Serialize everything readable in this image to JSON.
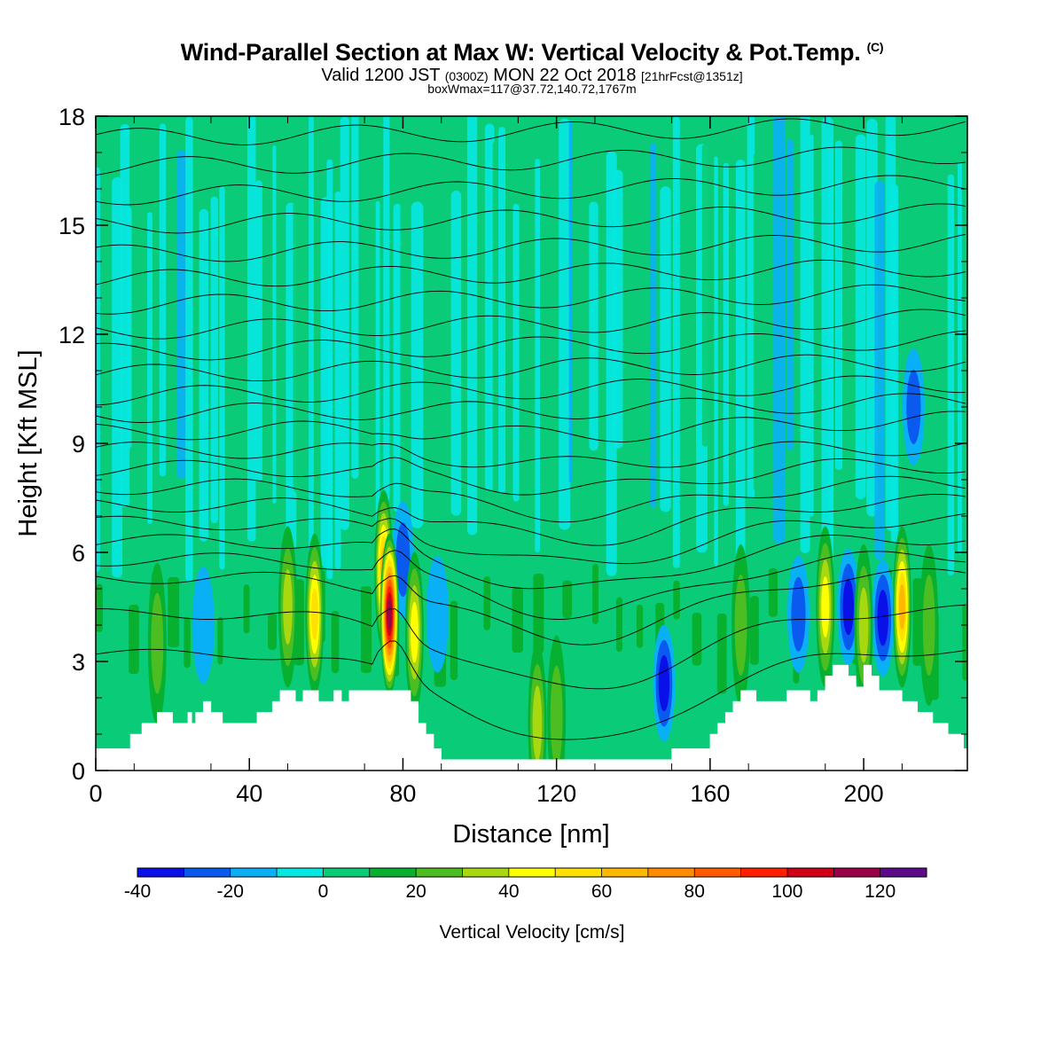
{
  "header": {
    "title_main": "Wind-Parallel Section at Max W: Vertical Velocity & Pot.Temp.",
    "title_mark": "(C)",
    "valid_a": "Valid 1200 JST",
    "valid_b": "(0300Z)",
    "valid_c": "MON 22 Oct 2018",
    "valid_d": "[21hrFcst@1351z]",
    "box_info": "boxWmax=117@37.72,140.72,1767m"
  },
  "chart_data": {
    "type": "heatmap",
    "xlabel": "Distance [nm]",
    "ylabel": "Height [Kft MSL]",
    "xlim": [
      0,
      227
    ],
    "ylim": [
      0,
      18
    ],
    "x_ticks": [
      0,
      40,
      80,
      120,
      160,
      200
    ],
    "y_ticks": [
      0,
      3,
      6,
      9,
      12,
      15,
      18
    ],
    "colorbar": {
      "label": "Vertical Velocity [cm/s]",
      "tick_labels": [
        -40,
        -20,
        0,
        20,
        40,
        60,
        80,
        100,
        120
      ],
      "levels": [
        -40,
        -30,
        -20,
        -10,
        0,
        10,
        20,
        30,
        40,
        50,
        60,
        70,
        80,
        90,
        100,
        110,
        120,
        130
      ],
      "colors": [
        "#0a10e8",
        "#0a5af0",
        "#0ab0f5",
        "#05e8e2",
        "#0acc78",
        "#08b030",
        "#4cbe22",
        "#a8d810",
        "#ffff00",
        "#ffe000",
        "#ffb800",
        "#ff8c00",
        "#ff5a00",
        "#ff2000",
        "#d00018",
        "#9a0048",
        "#5c0a8a"
      ]
    },
    "terrain_kft": {
      "x": [
        0,
        8,
        9,
        12,
        16,
        20,
        22,
        24,
        25,
        26,
        28,
        30,
        33,
        37,
        40,
        42,
        44,
        46,
        48,
        50,
        52,
        54,
        56,
        58,
        60,
        62,
        64,
        66,
        68,
        70,
        74,
        78,
        82,
        84,
        86,
        88,
        90,
        94,
        100,
        106,
        112,
        118,
        124,
        130,
        136,
        142,
        148,
        150,
        154,
        158,
        160,
        162,
        164,
        166,
        168,
        170,
        172,
        176,
        180,
        184,
        186,
        188,
        190,
        192,
        194,
        196,
        198,
        200,
        202,
        204,
        206,
        208,
        210,
        212,
        214,
        216,
        218,
        220,
        222,
        224,
        226,
        227
      ],
      "y": [
        0.6,
        0.6,
        1.0,
        1.3,
        1.6,
        1.3,
        1.3,
        1.6,
        1.3,
        1.6,
        1.9,
        1.6,
        1.3,
        1.3,
        1.3,
        1.6,
        1.6,
        1.9,
        2.2,
        2.2,
        1.9,
        2.2,
        2.2,
        1.9,
        1.9,
        2.2,
        1.9,
        2.2,
        2.2,
        2.2,
        2.2,
        2.2,
        1.9,
        1.3,
        1.0,
        0.6,
        0.3,
        0.3,
        0.3,
        0.3,
        0.3,
        0.3,
        0.3,
        0.3,
        0.3,
        0.3,
        0.3,
        0.6,
        0.6,
        0.6,
        1.0,
        1.3,
        1.6,
        1.9,
        2.2,
        2.2,
        1.9,
        1.9,
        2.2,
        2.2,
        1.9,
        2.2,
        2.6,
        2.9,
        2.9,
        2.6,
        2.3,
        2.9,
        2.6,
        2.2,
        2.2,
        2.2,
        1.9,
        1.9,
        1.6,
        1.6,
        1.3,
        1.3,
        1.0,
        1.0,
        0.6,
        0.6
      ]
    },
    "updraft_cores": [
      {
        "x": 16,
        "z": 3.5,
        "w": 30
      },
      {
        "x": 50,
        "z": 4.5,
        "w": 40
      },
      {
        "x": 57,
        "z": 4.3,
        "w": 60
      },
      {
        "x": 75,
        "z": 5.5,
        "w": 70
      },
      {
        "x": 76.5,
        "z": 4.3,
        "w": 117
      },
      {
        "x": 83,
        "z": 3.8,
        "w": 45
      },
      {
        "x": 115,
        "z": 1.3,
        "w": 40
      },
      {
        "x": 120,
        "z": 1.5,
        "w": 25
      },
      {
        "x": 168,
        "z": 4.0,
        "w": 30
      },
      {
        "x": 190,
        "z": 4.5,
        "w": 50
      },
      {
        "x": 200,
        "z": 4.0,
        "w": 35
      },
      {
        "x": 210,
        "z": 4.5,
        "w": 65
      },
      {
        "x": 217,
        "z": 4.0,
        "w": 30
      }
    ],
    "downdraft_cores": [
      {
        "x": 28,
        "z": 4.0,
        "w": -15
      },
      {
        "x": 80,
        "z": 5.8,
        "w": -20
      },
      {
        "x": 89,
        "z": 4.3,
        "w": -15
      },
      {
        "x": 148,
        "z": 2.4,
        "w": -30
      },
      {
        "x": 183,
        "z": 4.3,
        "w": -25
      },
      {
        "x": 196,
        "z": 4.5,
        "w": -30
      },
      {
        "x": 205,
        "z": 4.2,
        "w": -30
      },
      {
        "x": 213,
        "z": 10.0,
        "w": -20
      }
    ]
  }
}
